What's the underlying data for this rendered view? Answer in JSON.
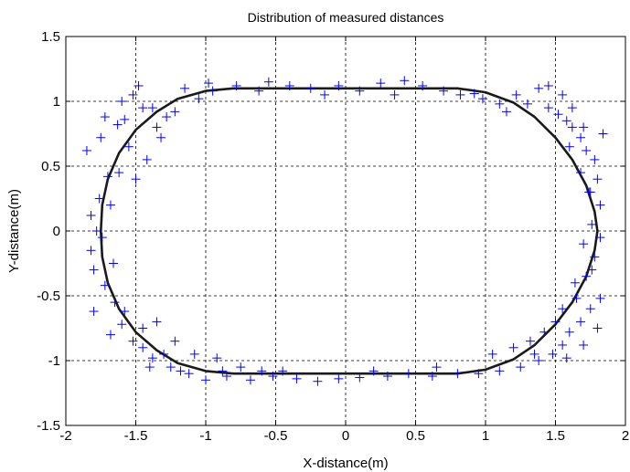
{
  "chart_data": {
    "type": "scatter",
    "title": "Distribution of measured distances",
    "xlabel": "X-distance(m)",
    "ylabel": "Y-distance(m)",
    "xlim": [
      -2,
      2
    ],
    "ylim": [
      -1.5,
      1.5
    ],
    "xticks": [
      -2,
      -1.5,
      -1,
      -0.5,
      0,
      0.5,
      1,
      1.5,
      2
    ],
    "yticks": [
      -1.5,
      -1,
      -0.5,
      0,
      0.5,
      1,
      1.5
    ],
    "xtick_labels": [
      "-2",
      "-1.5",
      "-1",
      "-0.5",
      "0",
      "0.5",
      "1",
      "1.5",
      "2"
    ],
    "ytick_labels": [
      "-1.5",
      "-1",
      "-0.5",
      "0",
      "0.5",
      "1",
      "1.5"
    ],
    "grid": true,
    "grid_style": "dashed",
    "colors": {
      "points": "#0000ff",
      "curve": "#1a1a1a",
      "grid": "#000000"
    },
    "series": [
      {
        "type": "line",
        "shape": "rounded-rectangle (stadium) track",
        "x": [
          -1.75,
          -1.74,
          -1.7,
          -1.62,
          -1.5,
          -1.35,
          -1.2,
          -1.0,
          -0.8,
          -0.6,
          -0.4,
          -0.2,
          0.0,
          0.2,
          0.4,
          0.6,
          0.8,
          1.0,
          1.2,
          1.35,
          1.5,
          1.62,
          1.72,
          1.78,
          1.8,
          1.78,
          1.72,
          1.62,
          1.5,
          1.35,
          1.2,
          1.0,
          0.8,
          0.6,
          0.4,
          0.2,
          0.0,
          -0.2,
          -0.4,
          -0.6,
          -0.8,
          -1.0,
          -1.2,
          -1.35,
          -1.5,
          -1.62,
          -1.7,
          -1.74,
          -1.75
        ],
        "y": [
          0.0,
          0.2,
          0.4,
          0.6,
          0.78,
          0.92,
          1.02,
          1.08,
          1.1,
          1.1,
          1.1,
          1.1,
          1.1,
          1.1,
          1.1,
          1.1,
          1.1,
          1.07,
          0.99,
          0.88,
          0.72,
          0.55,
          0.35,
          0.15,
          0.0,
          -0.15,
          -0.35,
          -0.55,
          -0.72,
          -0.88,
          -0.99,
          -1.07,
          -1.1,
          -1.1,
          -1.1,
          -1.1,
          -1.1,
          -1.1,
          -1.1,
          -1.1,
          -1.1,
          -1.08,
          -1.02,
          -0.92,
          -0.78,
          -0.6,
          -0.4,
          -0.2,
          0.0
        ]
      },
      {
        "type": "scatter",
        "marker": "+",
        "points": [
          [
            -1.85,
            0.62
          ],
          [
            -1.72,
            0.88
          ],
          [
            -1.63,
            0.82
          ],
          [
            -1.58,
            0.86
          ],
          [
            -1.52,
            1.05
          ],
          [
            -1.48,
            1.12
          ],
          [
            -1.38,
            0.95
          ],
          [
            -1.32,
            0.72
          ],
          [
            -1.28,
            0.88
          ],
          [
            -1.35,
            0.8
          ],
          [
            -1.22,
            0.92
          ],
          [
            -1.15,
            1.1
          ],
          [
            -1.05,
            1.02
          ],
          [
            -0.95,
            1.08
          ],
          [
            -0.78,
            1.12
          ],
          [
            -0.55,
            1.15
          ],
          [
            -0.4,
            1.12
          ],
          [
            -0.25,
            1.1
          ],
          [
            -0.05,
            1.12
          ],
          [
            0.1,
            1.08
          ],
          [
            0.25,
            1.14
          ],
          [
            0.42,
            1.16
          ],
          [
            0.55,
            1.12
          ],
          [
            0.7,
            1.08
          ],
          [
            0.82,
            1.05
          ],
          [
            0.98,
            1.02
          ],
          [
            1.1,
            0.98
          ],
          [
            1.22,
            1.05
          ],
          [
            1.38,
            1.1
          ],
          [
            1.45,
            0.95
          ],
          [
            1.52,
            0.9
          ],
          [
            1.58,
            0.85
          ],
          [
            1.62,
            0.8
          ],
          [
            1.68,
            0.72
          ],
          [
            1.72,
            0.62
          ],
          [
            1.78,
            0.55
          ],
          [
            1.8,
            0.4
          ],
          [
            1.75,
            0.3
          ],
          [
            1.82,
            0.2
          ],
          [
            1.76,
            0.05
          ],
          [
            1.82,
            -0.05
          ],
          [
            1.78,
            -0.2
          ],
          [
            1.72,
            -0.35
          ],
          [
            1.82,
            -0.52
          ],
          [
            1.75,
            -0.6
          ],
          [
            1.68,
            -0.7
          ],
          [
            1.6,
            -0.78
          ],
          [
            1.55,
            -0.88
          ],
          [
            1.48,
            -0.95
          ],
          [
            1.38,
            -1.0
          ],
          [
            1.25,
            -1.05
          ],
          [
            1.1,
            -1.08
          ],
          [
            0.95,
            -1.1
          ],
          [
            0.8,
            -1.1
          ],
          [
            0.62,
            -1.12
          ],
          [
            0.45,
            -1.1
          ],
          [
            0.3,
            -1.12
          ],
          [
            0.1,
            -1.13
          ],
          [
            -0.05,
            -1.14
          ],
          [
            -0.2,
            -1.16
          ],
          [
            -0.35,
            -1.14
          ],
          [
            -0.52,
            -1.12
          ],
          [
            -0.68,
            -1.15
          ],
          [
            -0.85,
            -1.12
          ],
          [
            -1.0,
            -1.15
          ],
          [
            -1.12,
            -1.1
          ],
          [
            -1.25,
            -1.05
          ],
          [
            -1.38,
            -0.98
          ],
          [
            -1.45,
            -0.9
          ],
          [
            -1.52,
            -0.85
          ],
          [
            -1.6,
            -0.72
          ],
          [
            -1.65,
            -0.55
          ],
          [
            -1.72,
            -0.42
          ],
          [
            -1.8,
            -0.3
          ],
          [
            -1.82,
            -0.15
          ],
          [
            -1.78,
            0.0
          ],
          [
            -1.82,
            0.12
          ],
          [
            -1.76,
            0.25
          ],
          [
            -1.7,
            0.42
          ],
          [
            -1.8,
            -0.62
          ],
          [
            -1.68,
            -0.8
          ],
          [
            -1.58,
            -0.62
          ],
          [
            -1.45,
            -0.75
          ],
          [
            -1.35,
            -0.7
          ],
          [
            -1.3,
            -0.95
          ],
          [
            -1.18,
            -1.08
          ],
          [
            -1.08,
            -0.95
          ],
          [
            -0.92,
            -0.98
          ],
          [
            -0.75,
            -1.05
          ],
          [
            -0.6,
            -1.08
          ],
          [
            1.05,
            -0.95
          ],
          [
            1.2,
            -0.9
          ],
          [
            1.32,
            -0.85
          ],
          [
            1.42,
            -0.78
          ],
          [
            1.5,
            -0.7
          ],
          [
            1.65,
            -0.52
          ],
          [
            1.55,
            -0.6
          ],
          [
            1.7,
            0.8
          ],
          [
            1.62,
            0.95
          ],
          [
            1.55,
            1.05
          ],
          [
            1.45,
            1.12
          ],
          [
            1.3,
            0.98
          ],
          [
            1.15,
            0.92
          ],
          [
            0.92,
            1.06
          ],
          [
            -1.42,
            0.55
          ],
          [
            -1.55,
            0.65
          ],
          [
            -1.62,
            0.45
          ],
          [
            -1.5,
            0.4
          ],
          [
            -1.68,
            0.2
          ],
          [
            -1.74,
            -0.05
          ],
          [
            -1.66,
            -0.25
          ],
          [
            1.68,
            0.45
          ],
          [
            1.74,
            0.3
          ],
          [
            1.7,
            -0.1
          ],
          [
            1.76,
            -0.3
          ],
          [
            1.64,
            -0.4
          ],
          [
            -0.15,
            1.05
          ],
          [
            0.35,
            1.05
          ],
          [
            -0.62,
            1.08
          ],
          [
            -0.98,
            1.14
          ],
          [
            0.65,
            -1.05
          ],
          [
            0.2,
            -1.08
          ],
          [
            -0.45,
            -1.08
          ],
          [
            -0.88,
            -1.08
          ],
          [
            -1.22,
            -0.85
          ],
          [
            -1.4,
            -1.05
          ],
          [
            1.35,
            -0.95
          ],
          [
            1.58,
            -0.98
          ],
          [
            1.7,
            -0.88
          ],
          [
            1.8,
            -0.75
          ],
          [
            1.84,
            0.75
          ],
          [
            1.6,
            0.65
          ],
          [
            -1.45,
            0.95
          ],
          [
            -1.6,
            1.0
          ],
          [
            -1.75,
            0.72
          ]
        ]
      }
    ]
  }
}
